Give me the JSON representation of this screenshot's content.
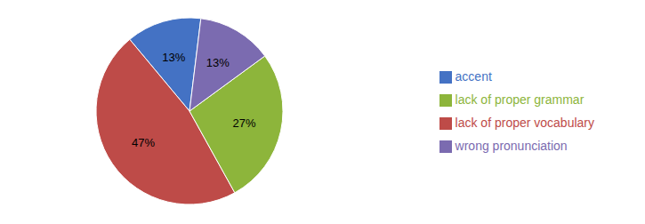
{
  "chart_data": {
    "type": "pie",
    "categories": [
      "accent",
      "lack of proper vocabulary",
      "lack of proper grammar",
      "wrong pronunciation"
    ],
    "values": [
      13,
      47,
      27,
      13
    ],
    "value_labels": [
      "13%",
      "47%",
      "27%",
      "13%"
    ],
    "colors": [
      "#4472C4",
      "#BE4B48",
      "#8DB53B",
      "#7B6BB0"
    ],
    "data_labels": true,
    "legend": "right"
  }
}
